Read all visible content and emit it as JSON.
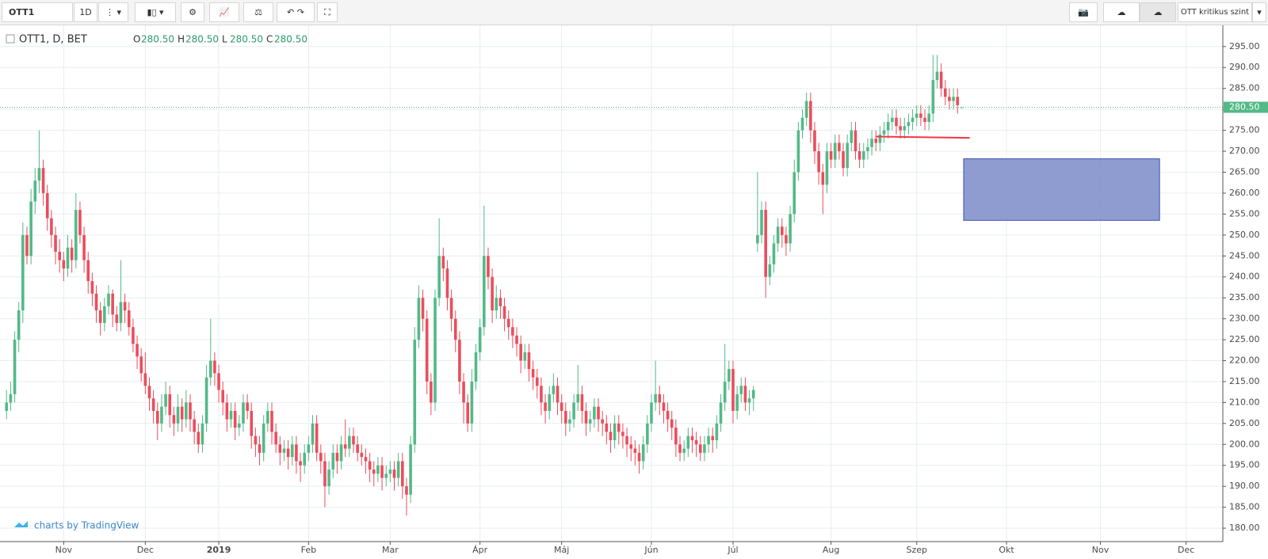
{
  "toolbar": {
    "symbol": "OTT1",
    "interval": "1D",
    "layout_name": "OTT kritikus szint"
  },
  "chart_data": {
    "type": "candlestick",
    "legend": {
      "symbol": "OTT1, D, BET",
      "ohlc": [
        [
          "O",
          "280.50"
        ],
        [
          "H",
          "280.50"
        ],
        [
          "L",
          "280.50"
        ],
        [
          "C",
          "280.50"
        ]
      ]
    },
    "up_color": "#53b987",
    "down_color": "#eb4d5c",
    "candles": [
      [
        208,
        213,
        206,
        210
      ],
      [
        210,
        215,
        208,
        212
      ],
      [
        212,
        227,
        210,
        225
      ],
      [
        225,
        234,
        222,
        232
      ],
      [
        232,
        253,
        229,
        250
      ],
      [
        250,
        252,
        243,
        245
      ],
      [
        245,
        261,
        243,
        258
      ],
      [
        258,
        266,
        255,
        263
      ],
      [
        263,
        275,
        260,
        266
      ],
      [
        266,
        268,
        257,
        260
      ],
      [
        260,
        262,
        251,
        254
      ],
      [
        254,
        256,
        247,
        250
      ],
      [
        250,
        252,
        243,
        246
      ],
      [
        246,
        249,
        241,
        244
      ],
      [
        244,
        246,
        239,
        242
      ],
      [
        242,
        250,
        240,
        247
      ],
      [
        247,
        249,
        241,
        244
      ],
      [
        244,
        260,
        242,
        256
      ],
      [
        256,
        258,
        248,
        250
      ],
      [
        250,
        252,
        241,
        244
      ],
      [
        244,
        246,
        236,
        239
      ],
      [
        239,
        241,
        233,
        236
      ],
      [
        236,
        238,
        229,
        232
      ],
      [
        232,
        234,
        226,
        229
      ],
      [
        229,
        235,
        227,
        233
      ],
      [
        233,
        238,
        231,
        236
      ],
      [
        236,
        237,
        228,
        231
      ],
      [
        231,
        233,
        227,
        229
      ],
      [
        229,
        244,
        227,
        234
      ],
      [
        234,
        236,
        229,
        232
      ],
      [
        232,
        234,
        226,
        228
      ],
      [
        228,
        230,
        222,
        224
      ],
      [
        224,
        226,
        218,
        221
      ],
      [
        221,
        223,
        215,
        217
      ],
      [
        217,
        222,
        212,
        214
      ],
      [
        214,
        216,
        208,
        211
      ],
      [
        211,
        213,
        205,
        208
      ],
      [
        208,
        210,
        201,
        205
      ],
      [
        205,
        212,
        203,
        209
      ],
      [
        209,
        215,
        207,
        212
      ],
      [
        212,
        214,
        204,
        207
      ],
      [
        207,
        209,
        202,
        205
      ],
      [
        205,
        212,
        203,
        209
      ],
      [
        209,
        211,
        203,
        206
      ],
      [
        206,
        213,
        204,
        210
      ],
      [
        210,
        212,
        203,
        206
      ],
      [
        206,
        208,
        200,
        203
      ],
      [
        203,
        205,
        198,
        200
      ],
      [
        200,
        207,
        198,
        205
      ],
      [
        205,
        219,
        203,
        216
      ],
      [
        216,
        230,
        214,
        220
      ],
      [
        220,
        222,
        214,
        217
      ],
      [
        217,
        219,
        210,
        213
      ],
      [
        213,
        215,
        207,
        210
      ],
      [
        210,
        212,
        203,
        206
      ],
      [
        206,
        210,
        204,
        208
      ],
      [
        208,
        210,
        201,
        204
      ],
      [
        204,
        207,
        202,
        205
      ],
      [
        205,
        212,
        203,
        210
      ],
      [
        210,
        212,
        206,
        208
      ],
      [
        208,
        210,
        199,
        202
      ],
      [
        202,
        204,
        197,
        200
      ],
      [
        200,
        202,
        195,
        198
      ],
      [
        198,
        207,
        196,
        205
      ],
      [
        205,
        210,
        203,
        208
      ],
      [
        208,
        210,
        200,
        203
      ],
      [
        203,
        205,
        198,
        200
      ],
      [
        200,
        202,
        195,
        198
      ],
      [
        198,
        201,
        196,
        199
      ],
      [
        199,
        201,
        194,
        197
      ],
      [
        197,
        202,
        195,
        200
      ],
      [
        200,
        202,
        193,
        196
      ],
      [
        196,
        198,
        191,
        195
      ],
      [
        195,
        200,
        193,
        198
      ],
      [
        198,
        202,
        196,
        200
      ],
      [
        200,
        207,
        198,
        205
      ],
      [
        205,
        207,
        196,
        198
      ],
      [
        198,
        200,
        193,
        196
      ],
      [
        196,
        198,
        185,
        190
      ],
      [
        190,
        196,
        188,
        194
      ],
      [
        194,
        200,
        192,
        198
      ],
      [
        198,
        200,
        193,
        196
      ],
      [
        196,
        202,
        194,
        200
      ],
      [
        200,
        206,
        197,
        199
      ],
      [
        199,
        204,
        197,
        202
      ],
      [
        202,
        204,
        198,
        200
      ],
      [
        200,
        202,
        196,
        198
      ],
      [
        198,
        200,
        195,
        197
      ],
      [
        197,
        199,
        193,
        196
      ],
      [
        196,
        198,
        191,
        194
      ],
      [
        194,
        196,
        190,
        193
      ],
      [
        193,
        197,
        191,
        195
      ],
      [
        195,
        197,
        189,
        192
      ],
      [
        192,
        195,
        190,
        193
      ],
      [
        193,
        196,
        191,
        194
      ],
      [
        194,
        196,
        189,
        192
      ],
      [
        192,
        198,
        190,
        196
      ],
      [
        196,
        198,
        187,
        190
      ],
      [
        190,
        192,
        183,
        188
      ],
      [
        188,
        202,
        186,
        200
      ],
      [
        200,
        228,
        198,
        225
      ],
      [
        225,
        238,
        223,
        235
      ],
      [
        235,
        237,
        227,
        230
      ],
      [
        230,
        232,
        212,
        215
      ],
      [
        215,
        217,
        207,
        210
      ],
      [
        210,
        237,
        208,
        235
      ],
      [
        235,
        254,
        233,
        245
      ],
      [
        245,
        247,
        239,
        242
      ],
      [
        242,
        244,
        232,
        235
      ],
      [
        235,
        237,
        227,
        230
      ],
      [
        230,
        232,
        222,
        225
      ],
      [
        225,
        227,
        212,
        215
      ],
      [
        215,
        217,
        205,
        210
      ],
      [
        210,
        212,
        203,
        205
      ],
      [
        205,
        218,
        203,
        215
      ],
      [
        215,
        224,
        213,
        222
      ],
      [
        222,
        230,
        220,
        228
      ],
      [
        228,
        257,
        226,
        245
      ],
      [
        245,
        247,
        237,
        240
      ],
      [
        240,
        242,
        229,
        232
      ],
      [
        232,
        238,
        230,
        235
      ],
      [
        235,
        237,
        230,
        233
      ],
      [
        233,
        235,
        227,
        230
      ],
      [
        230,
        232,
        225,
        228
      ],
      [
        228,
        230,
        223,
        226
      ],
      [
        226,
        228,
        221,
        224
      ],
      [
        224,
        226,
        217,
        220
      ],
      [
        220,
        224,
        218,
        222
      ],
      [
        222,
        224,
        215,
        218
      ],
      [
        218,
        220,
        213,
        216
      ],
      [
        216,
        218,
        211,
        214
      ],
      [
        214,
        216,
        207,
        210
      ],
      [
        210,
        212,
        205,
        208
      ],
      [
        208,
        214,
        206,
        212
      ],
      [
        212,
        217,
        210,
        214
      ],
      [
        214,
        216,
        207,
        210
      ],
      [
        210,
        212,
        205,
        208
      ],
      [
        208,
        210,
        202,
        205
      ],
      [
        205,
        208,
        203,
        206
      ],
      [
        206,
        212,
        204,
        210
      ],
      [
        210,
        219,
        208,
        212
      ],
      [
        212,
        214,
        205,
        208
      ],
      [
        208,
        210,
        202,
        205
      ],
      [
        205,
        208,
        203,
        206
      ],
      [
        206,
        211,
        204,
        209
      ],
      [
        209,
        211,
        203,
        206
      ],
      [
        206,
        208,
        202,
        205
      ],
      [
        205,
        207,
        200,
        203
      ],
      [
        203,
        205,
        198,
        201
      ],
      [
        201,
        207,
        199,
        205
      ],
      [
        205,
        207,
        200,
        203
      ],
      [
        203,
        205,
        199,
        202
      ],
      [
        202,
        204,
        197,
        200
      ],
      [
        200,
        202,
        196,
        199
      ],
      [
        199,
        201,
        195,
        198
      ],
      [
        198,
        200,
        193,
        196
      ],
      [
        196,
        202,
        194,
        200
      ],
      [
        200,
        207,
        198,
        205
      ],
      [
        205,
        212,
        203,
        210
      ],
      [
        210,
        220,
        208,
        212
      ],
      [
        212,
        214,
        207,
        210
      ],
      [
        210,
        212,
        205,
        208
      ],
      [
        208,
        210,
        203,
        206
      ],
      [
        206,
        208,
        201,
        204
      ],
      [
        204,
        206,
        197,
        200
      ],
      [
        200,
        202,
        196,
        198
      ],
      [
        198,
        201,
        196,
        199
      ],
      [
        199,
        204,
        197,
        202
      ],
      [
        202,
        204,
        198,
        201
      ],
      [
        201,
        203,
        197,
        200
      ],
      [
        200,
        202,
        196,
        198
      ],
      [
        198,
        202,
        196,
        200
      ],
      [
        200,
        204,
        198,
        202
      ],
      [
        202,
        204,
        198,
        201
      ],
      [
        201,
        207,
        199,
        205
      ],
      [
        205,
        212,
        203,
        210
      ],
      [
        210,
        224,
        208,
        215
      ],
      [
        215,
        220,
        213,
        218
      ],
      [
        218,
        220,
        205,
        208
      ],
      [
        208,
        214,
        206,
        212
      ],
      [
        212,
        216,
        210,
        214
      ],
      [
        214,
        216,
        208,
        210
      ],
      [
        210,
        213,
        207,
        211
      ],
      [
        211,
        214,
        208,
        213
      ],
      [
        248,
        265,
        246,
        250
      ],
      [
        250,
        258,
        248,
        256
      ],
      [
        256,
        258,
        235,
        240
      ],
      [
        240,
        245,
        238,
        243
      ],
      [
        243,
        250,
        241,
        248
      ],
      [
        248,
        254,
        246,
        252
      ],
      [
        252,
        254,
        247,
        250
      ],
      [
        250,
        252,
        245,
        248
      ],
      [
        248,
        257,
        246,
        255
      ],
      [
        255,
        268,
        253,
        265
      ],
      [
        265,
        277,
        263,
        275
      ],
      [
        275,
        280,
        273,
        278
      ],
      [
        278,
        284,
        276,
        282
      ],
      [
        282,
        284,
        272,
        275
      ],
      [
        275,
        277,
        267,
        270
      ],
      [
        270,
        272,
        262,
        265
      ],
      [
        265,
        267,
        255,
        262
      ],
      [
        262,
        272,
        260,
        270
      ],
      [
        270,
        272,
        266,
        268
      ],
      [
        268,
        274,
        266,
        272
      ],
      [
        272,
        274,
        268,
        270
      ],
      [
        270,
        272,
        264,
        266
      ],
      [
        266,
        274,
        264,
        272
      ],
      [
        272,
        277,
        270,
        275
      ],
      [
        275,
        277,
        268,
        270
      ],
      [
        270,
        272,
        266,
        268
      ],
      [
        268,
        272,
        266,
        270
      ],
      [
        270,
        273,
        268,
        271
      ],
      [
        271,
        275,
        269,
        273
      ],
      [
        273,
        275,
        270,
        272
      ],
      [
        272,
        276,
        270,
        274
      ],
      [
        274,
        277,
        272,
        275
      ],
      [
        275,
        279,
        273,
        277
      ],
      [
        277,
        280,
        275,
        278
      ],
      [
        278,
        280,
        274,
        276
      ],
      [
        276,
        278,
        273,
        275
      ],
      [
        275,
        278,
        273,
        276
      ],
      [
        276,
        279,
        274,
        277
      ],
      [
        277,
        280,
        275,
        278
      ],
      [
        278,
        281,
        276,
        279
      ],
      [
        279,
        281,
        276,
        278
      ],
      [
        278,
        280,
        275,
        277
      ],
      [
        277,
        281,
        275,
        279
      ],
      [
        279,
        293,
        277,
        287
      ],
      [
        287,
        293,
        285,
        289
      ],
      [
        289,
        291,
        283,
        285
      ],
      [
        285,
        287,
        281,
        283
      ],
      [
        283,
        285,
        280,
        282
      ],
      [
        282,
        285,
        280,
        283
      ],
      [
        283,
        285,
        279,
        281
      ],
      [
        280.5,
        280.5,
        280.5,
        280.5
      ]
    ],
    "last_price": {
      "value": 280.5,
      "label": "280.50"
    },
    "xlim": [
      -1.6,
      298
    ],
    "xticks": [
      {
        "value": 14,
        "label": "Nov"
      },
      {
        "value": 34,
        "label": "Dec"
      },
      {
        "value": 52,
        "label": "2019"
      },
      {
        "value": 74,
        "label": "Feb"
      },
      {
        "value": 94,
        "label": "Mar"
      },
      {
        "value": 116,
        "label": "Ápr"
      },
      {
        "value": 136,
        "label": "Máj"
      },
      {
        "value": 158,
        "label": "Jún"
      },
      {
        "value": 178,
        "label": "Júl"
      },
      {
        "value": 202,
        "label": "Aug"
      },
      {
        "value": 223,
        "label": "Szep"
      },
      {
        "value": 245,
        "label": "Okt"
      },
      {
        "value": 268,
        "label": "Nov"
      },
      {
        "value": 289,
        "label": "Dec"
      }
    ],
    "ylim": [
      176.8,
      299.5
    ],
    "yticks": [
      {
        "value": 180,
        "label": "180.00"
      },
      {
        "value": 185,
        "label": "185.00"
      },
      {
        "value": 190,
        "label": "190.00"
      },
      {
        "value": 195,
        "label": "195.00"
      },
      {
        "value": 200,
        "label": "200.00"
      },
      {
        "value": 205,
        "label": "205.00"
      },
      {
        "value": 210,
        "label": "210.00"
      },
      {
        "value": 215,
        "label": "215.00"
      },
      {
        "value": 220,
        "label": "220.00"
      },
      {
        "value": 225,
        "label": "225.00"
      },
      {
        "value": 230,
        "label": "230.00"
      },
      {
        "value": 235,
        "label": "235.00"
      },
      {
        "value": 240,
        "label": "240.00"
      },
      {
        "value": 245,
        "label": "245.00"
      },
      {
        "value": 250,
        "label": "250.00"
      },
      {
        "value": 255,
        "label": "255.00"
      },
      {
        "value": 260,
        "label": "260.00"
      },
      {
        "value": 265,
        "label": "265.00"
      },
      {
        "value": 270,
        "label": "270.00"
      },
      {
        "value": 275,
        "label": "275.00"
      },
      {
        "value": 280,
        "label": "280.00"
      },
      {
        "value": 285,
        "label": "285.00"
      },
      {
        "value": 290,
        "label": "290.00"
      },
      {
        "value": 295,
        "label": "295.00"
      }
    ],
    "grid": true,
    "drawings": {
      "trend_line": {
        "x": [
          213,
          236
        ],
        "y": [
          273.5,
          273.2
        ],
        "color": "#f23645"
      },
      "rectangle": {
        "x": [
          234.5,
          282.5
        ],
        "y": [
          253.5,
          268.2
        ],
        "color": "#7b8bc8"
      }
    },
    "watermark": "charts by TradingView"
  }
}
